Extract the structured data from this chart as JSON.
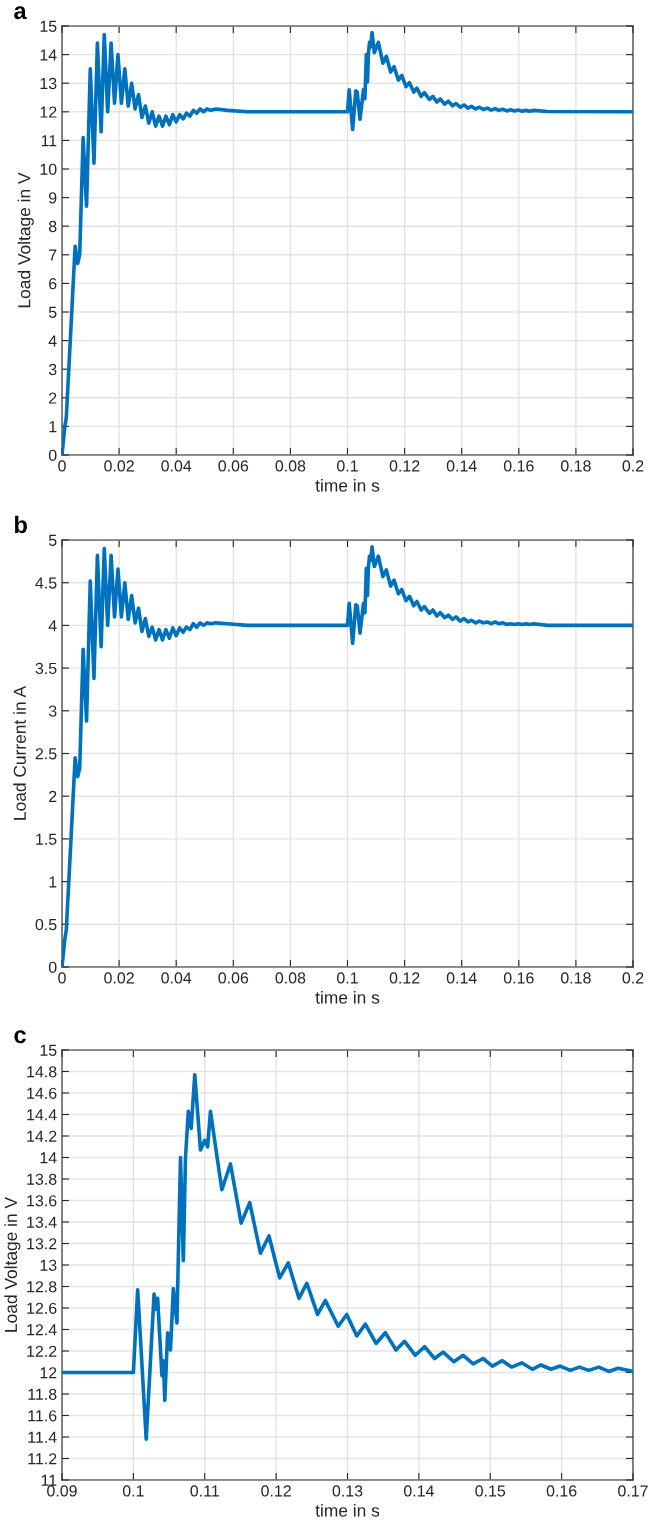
{
  "chart_data": [
    {
      "type": "line",
      "title": "a",
      "xlabel": "time in s",
      "ylabel": "Load Voltage in V",
      "grid": true,
      "marker": "none",
      "line_style": "solid",
      "xlim": [
        0,
        0.2
      ],
      "xticks": [
        0,
        0.02,
        0.04,
        0.06,
        0.08,
        0.1,
        0.12,
        0.14,
        0.16,
        0.18,
        0.2
      ],
      "ylim": [
        0,
        15
      ],
      "yticks": [
        0,
        1,
        2,
        3,
        4,
        5,
        6,
        7,
        8,
        9,
        10,
        11,
        12,
        13,
        14,
        15
      ],
      "x": [
        0,
        0.001,
        0.0015,
        0.003,
        0.0046,
        0.0055,
        0.0062,
        0.0074,
        0.0086,
        0.0099,
        0.0112,
        0.0124,
        0.0137,
        0.0148,
        0.016,
        0.0172,
        0.0184,
        0.0196,
        0.0208,
        0.022,
        0.0232,
        0.0244,
        0.0256,
        0.0268,
        0.028,
        0.0292,
        0.0304,
        0.0316,
        0.0328,
        0.034,
        0.0352,
        0.0364,
        0.0376,
        0.0388,
        0.04,
        0.0412,
        0.0424,
        0.0436,
        0.0448,
        0.046,
        0.0472,
        0.0484,
        0.0496,
        0.0508,
        0.052,
        0.054,
        0.058,
        0.065,
        0.1,
        0.1006,
        0.1018,
        0.1029,
        0.1034,
        0.1044,
        0.1056,
        0.1061,
        0.1066,
        0.107,
        0.1073,
        0.1077,
        0.1081,
        0.1086,
        0.1094,
        0.1108,
        0.1124,
        0.1136,
        0.1151,
        0.1163,
        0.1178,
        0.119,
        0.1205,
        0.1217,
        0.1232,
        0.1243,
        0.1258,
        0.1269,
        0.1287,
        0.1299,
        0.1313,
        0.1325,
        0.134,
        0.1353,
        0.1368,
        0.138,
        0.1395,
        0.1408,
        0.1422,
        0.1434,
        0.1449,
        0.1462,
        0.1476,
        0.149,
        0.1503,
        0.1517,
        0.153,
        0.1544,
        0.1559,
        0.1571,
        0.1585,
        0.1598,
        0.1612,
        0.1625,
        0.1638,
        0.1652,
        0.17,
        0.2
      ],
      "series": [
        {
          "color": "#0072bd",
          "values": [
            0,
            1.0,
            1.3,
            4.2,
            7.3,
            6.7,
            7.0,
            11.1,
            8.7,
            13.5,
            10.2,
            14.4,
            11.3,
            14.7,
            12.0,
            14.4,
            12.3,
            14.0,
            12.3,
            13.5,
            12.2,
            13.0,
            12.1,
            12.6,
            11.8,
            12.2,
            11.6,
            12.0,
            11.5,
            11.85,
            11.5,
            11.85,
            11.55,
            11.9,
            11.65,
            11.9,
            11.75,
            11.95,
            11.85,
            12.05,
            11.95,
            12.1,
            12.0,
            12.1,
            12.05,
            12.1,
            12.05,
            12.0,
            12.0,
            12.77,
            11.38,
            12.73,
            12.69,
            11.74,
            12.78,
            12.46,
            14.0,
            13.04,
            14.0,
            14.43,
            14.27,
            14.77,
            14.07,
            14.43,
            13.7,
            13.94,
            13.39,
            13.58,
            13.11,
            13.27,
            12.88,
            13.02,
            12.69,
            12.83,
            12.54,
            12.67,
            12.43,
            12.54,
            12.34,
            12.45,
            12.27,
            12.37,
            12.21,
            12.29,
            12.16,
            12.24,
            12.13,
            12.19,
            12.1,
            12.16,
            12.08,
            12.13,
            12.06,
            12.11,
            12.05,
            12.09,
            12.03,
            12.07,
            12.03,
            12.06,
            12.02,
            12.05,
            12.02,
            12.05,
            12.01,
            12.0
          ]
        }
      ]
    },
    {
      "type": "line",
      "title": "b",
      "xlabel": "time in s",
      "ylabel": "Load Current in A",
      "grid": true,
      "marker": "none",
      "line_style": "solid",
      "xlim": [
        0,
        0.2
      ],
      "xticks": [
        0,
        0.02,
        0.04,
        0.06,
        0.08,
        0.1,
        0.12,
        0.14,
        0.16,
        0.18,
        0.2
      ],
      "ylim": [
        0,
        5
      ],
      "yticks": [
        0,
        0.5,
        1,
        1.5,
        2,
        2.5,
        3,
        3.5,
        4,
        4.5,
        5
      ],
      "x": [
        0,
        0.001,
        0.0015,
        0.003,
        0.0046,
        0.0055,
        0.0062,
        0.0074,
        0.0086,
        0.0099,
        0.0112,
        0.0124,
        0.0137,
        0.0148,
        0.016,
        0.0172,
        0.0184,
        0.0196,
        0.0208,
        0.022,
        0.0232,
        0.0244,
        0.0256,
        0.0268,
        0.028,
        0.0292,
        0.0304,
        0.0316,
        0.0328,
        0.034,
        0.0352,
        0.0364,
        0.0376,
        0.0388,
        0.04,
        0.0412,
        0.0424,
        0.0436,
        0.0448,
        0.046,
        0.0472,
        0.0484,
        0.0496,
        0.0508,
        0.052,
        0.054,
        0.058,
        0.065,
        0.1,
        0.1006,
        0.1018,
        0.1029,
        0.1034,
        0.1044,
        0.1056,
        0.1061,
        0.1066,
        0.107,
        0.1073,
        0.1077,
        0.1081,
        0.1086,
        0.1094,
        0.1108,
        0.1124,
        0.1136,
        0.1151,
        0.1163,
        0.1178,
        0.119,
        0.1205,
        0.1217,
        0.1232,
        0.1243,
        0.1258,
        0.1269,
        0.1287,
        0.1299,
        0.1313,
        0.1325,
        0.134,
        0.1353,
        0.1368,
        0.138,
        0.1395,
        0.1408,
        0.1422,
        0.1434,
        0.1449,
        0.1462,
        0.1476,
        0.149,
        0.1503,
        0.1517,
        0.153,
        0.1544,
        0.1559,
        0.1571,
        0.1585,
        0.1598,
        0.1612,
        0.1625,
        0.1638,
        0.1652,
        0.17,
        0.2
      ],
      "series": [
        {
          "color": "#0072bd",
          "values": [
            0,
            0.33,
            0.43,
            1.4,
            2.45,
            2.23,
            2.33,
            3.72,
            2.88,
            4.52,
            3.38,
            4.82,
            3.75,
            4.9,
            4.0,
            4.82,
            4.1,
            4.66,
            4.1,
            4.5,
            4.07,
            4.35,
            4.03,
            4.2,
            3.93,
            4.08,
            3.87,
            3.98,
            3.83,
            3.95,
            3.83,
            3.95,
            3.85,
            3.97,
            3.88,
            3.97,
            3.92,
            3.98,
            3.95,
            4.02,
            3.98,
            4.03,
            4.0,
            4.03,
            4.02,
            4.03,
            4.02,
            4.0,
            4.0,
            4.26,
            3.79,
            4.24,
            4.23,
            3.91,
            4.26,
            4.15,
            4.67,
            4.35,
            4.67,
            4.81,
            4.76,
            4.92,
            4.69,
            4.81,
            4.57,
            4.65,
            4.46,
            4.53,
            4.37,
            4.42,
            4.29,
            4.34,
            4.23,
            4.28,
            4.18,
            4.22,
            4.14,
            4.18,
            4.11,
            4.15,
            4.09,
            4.12,
            4.07,
            4.1,
            4.05,
            4.08,
            4.04,
            4.06,
            4.03,
            4.05,
            4.03,
            4.04,
            4.02,
            4.04,
            4.02,
            4.03,
            4.01,
            4.02,
            4.01,
            4.02,
            4.01,
            4.02,
            4.01,
            4.02,
            4.0,
            4.0
          ]
        }
      ]
    },
    {
      "type": "line",
      "title": "c",
      "xlabel": "time in s",
      "ylabel": "Load Voltage in V",
      "grid": true,
      "marker": "none",
      "line_style": "solid",
      "xlim": [
        0.09,
        0.17
      ],
      "xticks": [
        0.09,
        0.1,
        0.11,
        0.12,
        0.13,
        0.14,
        0.15,
        0.16,
        0.17
      ],
      "ylim": [
        11,
        15
      ],
      "yticks": [
        11,
        11.2,
        11.4,
        11.6,
        11.8,
        12,
        12.2,
        12.4,
        12.6,
        12.8,
        13,
        13.2,
        13.4,
        13.6,
        13.8,
        14,
        14.2,
        14.4,
        14.6,
        14.8,
        15
      ],
      "x": [
        0.09,
        0.1,
        0.1006,
        0.1018,
        0.1029,
        0.1031,
        0.1034,
        0.104,
        0.1042,
        0.1044,
        0.1048,
        0.1052,
        0.1056,
        0.1061,
        0.1066,
        0.107,
        0.1073,
        0.1077,
        0.1081,
        0.1086,
        0.1094,
        0.11,
        0.1104,
        0.1108,
        0.1118,
        0.1124,
        0.1136,
        0.1151,
        0.1163,
        0.1178,
        0.119,
        0.1205,
        0.1217,
        0.1232,
        0.1243,
        0.1258,
        0.1269,
        0.1287,
        0.1299,
        0.1313,
        0.1325,
        0.134,
        0.1353,
        0.1368,
        0.138,
        0.1395,
        0.1408,
        0.1422,
        0.1434,
        0.1449,
        0.1462,
        0.1476,
        0.149,
        0.1503,
        0.1517,
        0.153,
        0.1544,
        0.1559,
        0.1571,
        0.1585,
        0.1598,
        0.1612,
        0.1625,
        0.1638,
        0.1652,
        0.1666,
        0.1679,
        0.17
      ],
      "series": [
        {
          "color": "#0072bd",
          "values": [
            12.0,
            12.0,
            12.77,
            11.38,
            12.73,
            12.59,
            12.69,
            11.97,
            12.11,
            11.74,
            12.37,
            12.21,
            12.78,
            12.46,
            14.0,
            13.04,
            14.0,
            14.43,
            14.27,
            14.77,
            14.07,
            14.16,
            14.1,
            14.43,
            13.97,
            13.7,
            13.94,
            13.39,
            13.58,
            13.11,
            13.27,
            12.88,
            13.02,
            12.69,
            12.83,
            12.54,
            12.67,
            12.43,
            12.54,
            12.34,
            12.45,
            12.27,
            12.37,
            12.21,
            12.29,
            12.16,
            12.24,
            12.13,
            12.19,
            12.1,
            12.16,
            12.08,
            12.13,
            12.06,
            12.11,
            12.05,
            12.09,
            12.03,
            12.07,
            12.03,
            12.06,
            12.02,
            12.05,
            12.02,
            12.05,
            12.01,
            12.04,
            12.01
          ]
        }
      ]
    }
  ]
}
